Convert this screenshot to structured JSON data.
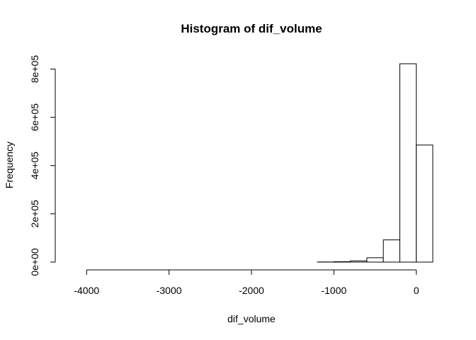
{
  "chart_data": {
    "type": "bar",
    "title": "Histogram of dif_volume",
    "xlabel": "dif_volume",
    "ylabel": "Frequency",
    "bin_width": 200,
    "bins": [
      {
        "x0": -4200,
        "x1": -4000,
        "count": 0
      },
      {
        "x0": -4000,
        "x1": -3800,
        "count": 0
      },
      {
        "x0": -3800,
        "x1": -3600,
        "count": 0
      },
      {
        "x0": -3600,
        "x1": -3400,
        "count": 0
      },
      {
        "x0": -3400,
        "x1": -3200,
        "count": 0
      },
      {
        "x0": -3200,
        "x1": -3000,
        "count": 0
      },
      {
        "x0": -3000,
        "x1": -2800,
        "count": 0
      },
      {
        "x0": -2800,
        "x1": -2600,
        "count": 0
      },
      {
        "x0": -2600,
        "x1": -2400,
        "count": 0
      },
      {
        "x0": -2400,
        "x1": -2200,
        "count": 0
      },
      {
        "x0": -2200,
        "x1": -2000,
        "count": 0
      },
      {
        "x0": -2000,
        "x1": -1800,
        "count": 0
      },
      {
        "x0": -1800,
        "x1": -1600,
        "count": 0
      },
      {
        "x0": -1600,
        "x1": -1400,
        "count": 0
      },
      {
        "x0": -1400,
        "x1": -1200,
        "count": 0
      },
      {
        "x0": -1200,
        "x1": -1000,
        "count": 500
      },
      {
        "x0": -1000,
        "x1": -800,
        "count": 1500
      },
      {
        "x0": -800,
        "x1": -600,
        "count": 5000
      },
      {
        "x0": -600,
        "x1": -400,
        "count": 18000
      },
      {
        "x0": -400,
        "x1": -200,
        "count": 92000
      },
      {
        "x0": -200,
        "x1": 0,
        "count": 822000
      },
      {
        "x0": 0,
        "x1": 200,
        "count": 485000
      }
    ],
    "xlim": [
      -4200,
      200
    ],
    "ylim": [
      0,
      822000
    ],
    "x_ticks": [
      {
        "value": -4000,
        "label": "-4000"
      },
      {
        "value": -3000,
        "label": "-3000"
      },
      {
        "value": -2000,
        "label": "-2000"
      },
      {
        "value": -1000,
        "label": "-1000"
      },
      {
        "value": 0,
        "label": "0"
      }
    ],
    "y_ticks": [
      {
        "value": 0,
        "label": "0e+00"
      },
      {
        "value": 200000,
        "label": "2e+05"
      },
      {
        "value": 400000,
        "label": "4e+05"
      },
      {
        "value": 600000,
        "label": "6e+05"
      },
      {
        "value": 800000,
        "label": "8e+05"
      }
    ],
    "grid": false,
    "legend": "none"
  }
}
